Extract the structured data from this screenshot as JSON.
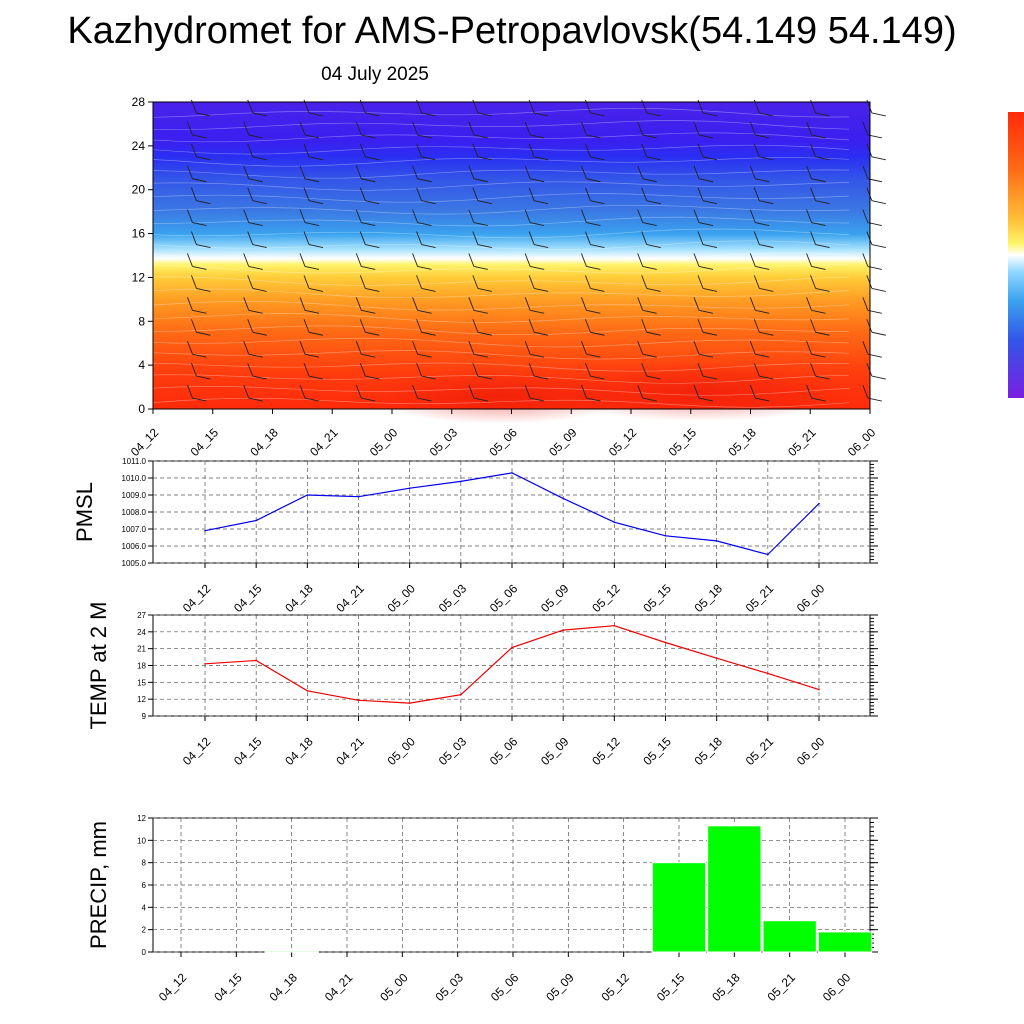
{
  "title": "Kazhydromet for AMS-Petropavlovsk(54.149 54.149)",
  "subtitle": "04 July 2025",
  "colors": {
    "pmsl_line": "#0000ee",
    "temp_line": "#ee0000",
    "precip_bar": "#00ff00",
    "grid": "#555555"
  },
  "chart_data": [
    {
      "type": "heatmap",
      "title": "",
      "xlabel": "",
      "ylabel": "",
      "x": [
        "04_12",
        "04_15",
        "04_18",
        "04_21",
        "05_00",
        "05_03",
        "05_06",
        "05_09",
        "05_12",
        "05_15",
        "05_18",
        "05_21",
        "06_00"
      ],
      "ylim": [
        0,
        28
      ],
      "yticks": [
        0,
        4,
        8,
        12,
        16,
        20,
        24,
        28
      ],
      "colorbar": [
        "#7a1fe0",
        "#3b22f5",
        "#2a4bef",
        "#3a78e8",
        "#46a8ee",
        "#8fd6ff",
        "#ffffff",
        "#fff46a",
        "#ffc23a",
        "#ff8f1f",
        "#ff5a12",
        "#ff2a0a"
      ],
      "wind_barbs": true
    },
    {
      "type": "line",
      "title": "",
      "ylabel": "PMSL",
      "x": [
        "04_12",
        "04_15",
        "04_18",
        "04_21",
        "05_00",
        "05_03",
        "05_06",
        "05_09",
        "05_12",
        "05_15",
        "05_18",
        "05_21",
        "06_00"
      ],
      "values": [
        1006.9,
        1007.5,
        1009.0,
        1008.9,
        1009.4,
        1009.8,
        1010.3,
        1008.8,
        1007.4,
        1006.6,
        1006.3,
        1005.5,
        1008.5
      ],
      "ylim": [
        1005.0,
        1011.0
      ],
      "yticks": [
        "1005.0",
        "1006.0",
        "1007.0",
        "1008.0",
        "1009.0",
        "1010.0",
        "1011.0"
      ],
      "grid": true
    },
    {
      "type": "line",
      "title": "",
      "ylabel": "TEMP at 2 M",
      "x": [
        "04_12",
        "04_15",
        "04_18",
        "04_21",
        "05_00",
        "05_03",
        "05_06",
        "05_09",
        "05_12",
        "05_15",
        "05_18",
        "05_21",
        "06_00"
      ],
      "values": [
        18.3,
        18.9,
        13.5,
        11.8,
        11.3,
        12.8,
        21.2,
        24.3,
        25.1,
        22.1,
        19.3,
        16.6,
        13.7
      ],
      "ylim": [
        9,
        27
      ],
      "yticks": [
        "9",
        "12",
        "15",
        "18",
        "21",
        "24",
        "27"
      ],
      "grid": true
    },
    {
      "type": "bar",
      "title": "",
      "ylabel": "PRECIP, mm",
      "categories": [
        "04_12",
        "04_15",
        "04_18",
        "04_21",
        "05_00",
        "05_03",
        "05_06",
        "05_09",
        "05_12",
        "05_15",
        "05_18",
        "05_21",
        "06_00"
      ],
      "values": [
        0,
        0,
        0.1,
        0,
        0,
        0,
        0,
        0,
        0,
        8.0,
        11.3,
        2.8,
        1.8
      ],
      "ylim": [
        0,
        12
      ],
      "yticks": [
        "0",
        "2",
        "4",
        "6",
        "8",
        "10",
        "12"
      ],
      "grid": true
    }
  ]
}
